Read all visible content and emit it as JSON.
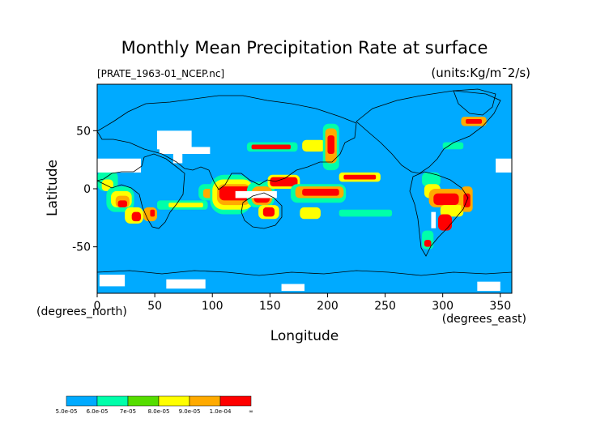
{
  "chart_data": {
    "type": "heatmap",
    "title": "Monthly Mean Precipitation Rate at surface",
    "source_file": "[PRATE_1963-01_NCEP.nc]",
    "units": "(units:Kg/m¯2/s)",
    "xlabel": "Longitude",
    "ylabel": "Latitude",
    "x_unit": "(degrees_east)",
    "y_unit": "(degrees_north)",
    "xlim": [
      0,
      360
    ],
    "ylim": [
      -90,
      90
    ],
    "x_ticks": [
      0,
      50,
      100,
      150,
      200,
      250,
      300,
      350
    ],
    "y_ticks": [
      50,
      0,
      -50
    ],
    "background_color": "#00aaff",
    "missing_color": "#ffffff",
    "colorbar": {
      "levels": [
        {
          "label": "5.0e-05",
          "color": "#00aaff"
        },
        {
          "label": "6.0e-05",
          "color": "#00ffaa"
        },
        {
          "label": "7e-05",
          "color": "#55dd00"
        },
        {
          "label": "8.0e-05",
          "color": "#ffff00"
        },
        {
          "label": "9.0e-05",
          "color": "#ffaa00"
        },
        {
          "label": "1.0e-04",
          "color": "#ff0000"
        },
        {
          "label": "∞",
          "color": "#ff0000"
        }
      ]
    },
    "regions": [
      {
        "lon": 0,
        "lat": 16,
        "w": 18,
        "h": 18,
        "color": "#00ffaa"
      },
      {
        "lon": 4,
        "lat": 8,
        "w": 10,
        "h": 10,
        "color": "#ffff00"
      },
      {
        "lon": 8,
        "lat": 2,
        "w": 24,
        "h": 22,
        "color": "#00ffaa"
      },
      {
        "lon": 12,
        "lat": -2,
        "w": 18,
        "h": 14,
        "color": "#ffff00"
      },
      {
        "lon": 16,
        "lat": -6,
        "w": 12,
        "h": 10,
        "color": "#ffaa00"
      },
      {
        "lon": 18,
        "lat": -10,
        "w": 8,
        "h": 6,
        "color": "#ff0000"
      },
      {
        "lon": 24,
        "lat": -16,
        "w": 16,
        "h": 14,
        "color": "#ffff00"
      },
      {
        "lon": 30,
        "lat": -20,
        "w": 8,
        "h": 8,
        "color": "#ff0000"
      },
      {
        "lon": 40,
        "lat": -16,
        "w": 12,
        "h": 12,
        "color": "#ffaa00"
      },
      {
        "lon": 46,
        "lat": -18,
        "w": 4,
        "h": 6,
        "color": "#ff0000"
      },
      {
        "lon": 52,
        "lat": -10,
        "w": 44,
        "h": 8,
        "color": "#00ffaa"
      },
      {
        "lon": 62,
        "lat": -12,
        "w": 30,
        "h": 4,
        "color": "#ffff00"
      },
      {
        "lon": 88,
        "lat": 4,
        "w": 22,
        "h": 14,
        "color": "#00ffaa"
      },
      {
        "lon": 92,
        "lat": 0,
        "w": 14,
        "h": 8,
        "color": "#ffaa00"
      },
      {
        "lon": 98,
        "lat": 12,
        "w": 36,
        "h": 34,
        "color": "#00ffaa"
      },
      {
        "lon": 100,
        "lat": 8,
        "w": 36,
        "h": 26,
        "color": "#ffff00"
      },
      {
        "lon": 104,
        "lat": 4,
        "w": 30,
        "h": 18,
        "color": "#ffaa00"
      },
      {
        "lon": 106,
        "lat": 2,
        "w": 28,
        "h": 12,
        "color": "#ff0000"
      },
      {
        "lon": 130,
        "lat": 6,
        "w": 24,
        "h": 22,
        "color": "#00ffaa"
      },
      {
        "lon": 134,
        "lat": 2,
        "w": 18,
        "h": 16,
        "color": "#ffaa00"
      },
      {
        "lon": 136,
        "lat": -2,
        "w": 14,
        "h": 10,
        "color": "#ff0000"
      },
      {
        "lon": 140,
        "lat": -14,
        "w": 18,
        "h": 12,
        "color": "#ffff00"
      },
      {
        "lon": 144,
        "lat": -16,
        "w": 10,
        "h": 8,
        "color": "#ff0000"
      },
      {
        "lon": 148,
        "lat": 12,
        "w": 28,
        "h": 12,
        "color": "#ffff00"
      },
      {
        "lon": 150,
        "lat": 10,
        "w": 24,
        "h": 8,
        "color": "#ff0000"
      },
      {
        "lon": 168,
        "lat": 4,
        "w": 48,
        "h": 16,
        "color": "#00ffaa"
      },
      {
        "lon": 172,
        "lat": 2,
        "w": 42,
        "h": 10,
        "color": "#ffaa00"
      },
      {
        "lon": 178,
        "lat": 0,
        "w": 32,
        "h": 6,
        "color": "#ff0000"
      },
      {
        "lon": 176,
        "lat": -16,
        "w": 18,
        "h": 10,
        "color": "#ffff00"
      },
      {
        "lon": 210,
        "lat": 14,
        "w": 36,
        "h": 8,
        "color": "#ffff00"
      },
      {
        "lon": 214,
        "lat": 12,
        "w": 28,
        "h": 4,
        "color": "#ff0000"
      },
      {
        "lon": 210,
        "lat": -18,
        "w": 46,
        "h": 6,
        "color": "#00ffaa"
      },
      {
        "lon": 130,
        "lat": 40,
        "w": 44,
        "h": 8,
        "color": "#00ffaa"
      },
      {
        "lon": 134,
        "lat": 38,
        "w": 34,
        "h": 4,
        "color": "#ff0000"
      },
      {
        "lon": 178,
        "lat": 42,
        "w": 20,
        "h": 10,
        "color": "#ffff00"
      },
      {
        "lon": 196,
        "lat": 56,
        "w": 14,
        "h": 40,
        "color": "#00ffaa"
      },
      {
        "lon": 198,
        "lat": 52,
        "w": 10,
        "h": 30,
        "color": "#ffaa00"
      },
      {
        "lon": 200,
        "lat": 46,
        "w": 6,
        "h": 16,
        "color": "#ff0000"
      },
      {
        "lon": 282,
        "lat": 14,
        "w": 16,
        "h": 12,
        "color": "#00ffaa"
      },
      {
        "lon": 284,
        "lat": 4,
        "w": 14,
        "h": 12,
        "color": "#ffff00"
      },
      {
        "lon": 288,
        "lat": 0,
        "w": 30,
        "h": 16,
        "color": "#ffaa00"
      },
      {
        "lon": 292,
        "lat": -4,
        "w": 22,
        "h": 10,
        "color": "#ff0000"
      },
      {
        "lon": 298,
        "lat": -14,
        "w": 20,
        "h": 10,
        "color": "#ffff00"
      },
      {
        "lon": 296,
        "lat": -22,
        "w": 12,
        "h": 14,
        "color": "#ff0000"
      },
      {
        "lon": 316,
        "lat": 2,
        "w": 10,
        "h": 22,
        "color": "#ffaa00"
      },
      {
        "lon": 318,
        "lat": -4,
        "w": 6,
        "h": 12,
        "color": "#ff0000"
      },
      {
        "lon": 282,
        "lat": -36,
        "w": 10,
        "h": 16,
        "color": "#00ffaa"
      },
      {
        "lon": 284,
        "lat": -44,
        "w": 6,
        "h": 6,
        "color": "#ff0000"
      },
      {
        "lon": 300,
        "lat": 40,
        "w": 18,
        "h": 6,
        "color": "#00ffaa"
      },
      {
        "lon": 316,
        "lat": 62,
        "w": 22,
        "h": 8,
        "color": "#ffaa00"
      },
      {
        "lon": 320,
        "lat": 60,
        "w": 14,
        "h": 4,
        "color": "#ff0000"
      }
    ],
    "missing_regions": [
      {
        "lon": 0,
        "lat": 26,
        "w": 38,
        "h": 12
      },
      {
        "lon": 52,
        "lat": 50,
        "w": 30,
        "h": 16
      },
      {
        "lon": 54,
        "lat": 36,
        "w": 44,
        "h": 6
      },
      {
        "lon": 66,
        "lat": 30,
        "w": 8,
        "h": 8
      },
      {
        "lon": 120,
        "lat": -2,
        "w": 36,
        "h": 6
      },
      {
        "lon": 2,
        "lat": -74,
        "w": 22,
        "h": 10
      },
      {
        "lon": 60,
        "lat": -78,
        "w": 34,
        "h": 8
      },
      {
        "lon": 160,
        "lat": -82,
        "w": 20,
        "h": 6
      },
      {
        "lon": 330,
        "lat": -80,
        "w": 20,
        "h": 8
      },
      {
        "lon": 346,
        "lat": 26,
        "w": 14,
        "h": 12
      },
      {
        "lon": 290,
        "lat": -20,
        "w": 4,
        "h": 14
      }
    ]
  }
}
